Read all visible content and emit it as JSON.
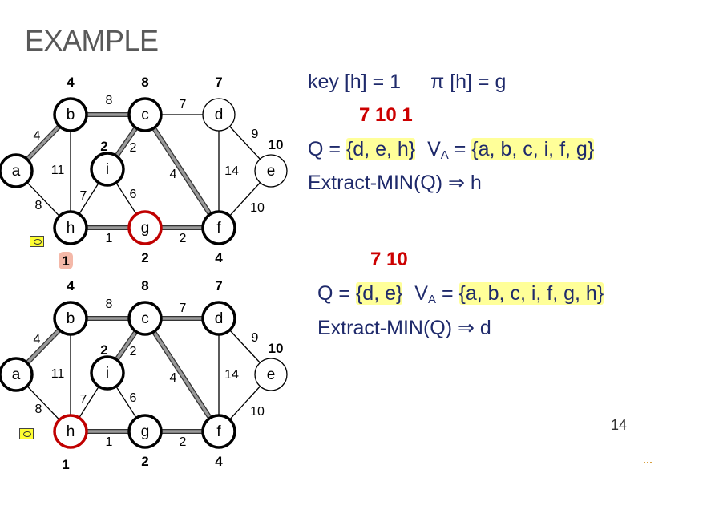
{
  "slide": {
    "title": "EXAMPLE",
    "page_number": "14"
  },
  "step1": {
    "key_line": "key [h] = 1",
    "pi_line": "π [h] = g",
    "queue_keys": "7 10 1",
    "q_label": "Q = ",
    "q_set": "{d, e, h}",
    "va_label": "V",
    "va_sub": "A",
    "va_eq": " = ",
    "va_set": "{a, b, c, i, f, g}",
    "extract": "Extract-MIN(Q) ⇒ h"
  },
  "step2": {
    "queue_keys": "7 10",
    "q_label": "Q = ",
    "q_set": "{d, e}",
    "va_label": "V",
    "va_sub": "A",
    "va_eq": " = ",
    "va_set": "{a, b, c, i, f, g, h}",
    "extract": "Extract-MIN(Q) ⇒ d"
  },
  "graphs": [
    {
      "nodes": [
        {
          "id": "a",
          "key": "",
          "bold": true,
          "red": false
        },
        {
          "id": "b",
          "key": "4",
          "bold": true,
          "red": false
        },
        {
          "id": "c",
          "key": "8",
          "bold": true,
          "red": false
        },
        {
          "id": "d",
          "key": "7",
          "bold": false,
          "red": false
        },
        {
          "id": "e",
          "key": "10",
          "bold": false,
          "red": false
        },
        {
          "id": "f",
          "key": "4",
          "bold": true,
          "red": false
        },
        {
          "id": "g",
          "key": "2",
          "bold": true,
          "red": true
        },
        {
          "id": "h",
          "key": "1",
          "bold": true,
          "red": false,
          "key_highlight": true
        },
        {
          "id": "i",
          "key": "2",
          "bold": true,
          "red": false
        }
      ],
      "edges": [
        {
          "u": "a",
          "v": "b",
          "w": "4",
          "tree": true
        },
        {
          "u": "a",
          "v": "h",
          "w": "8",
          "tree": false
        },
        {
          "u": "b",
          "v": "c",
          "w": "8",
          "tree": true
        },
        {
          "u": "b",
          "v": "h",
          "w": "11",
          "tree": false
        },
        {
          "u": "c",
          "v": "d",
          "w": "7",
          "tree": false
        },
        {
          "u": "c",
          "v": "i",
          "w": "2",
          "tree": true
        },
        {
          "u": "c",
          "v": "f",
          "w": "4",
          "tree": true
        },
        {
          "u": "d",
          "v": "e",
          "w": "9",
          "tree": false
        },
        {
          "u": "d",
          "v": "f",
          "w": "14",
          "tree": false
        },
        {
          "u": "e",
          "v": "f",
          "w": "10",
          "tree": false
        },
        {
          "u": "f",
          "v": "g",
          "w": "2",
          "tree": true
        },
        {
          "u": "g",
          "v": "h",
          "w": "1",
          "tree": true
        },
        {
          "u": "g",
          "v": "i",
          "w": "6",
          "tree": false
        },
        {
          "u": "h",
          "v": "i",
          "w": "7",
          "tree": false
        }
      ]
    },
    {
      "nodes": [
        {
          "id": "a",
          "key": "",
          "bold": true,
          "red": false
        },
        {
          "id": "b",
          "key": "4",
          "bold": true,
          "red": false
        },
        {
          "id": "c",
          "key": "8",
          "bold": true,
          "red": false
        },
        {
          "id": "d",
          "key": "7",
          "bold": true,
          "red": false
        },
        {
          "id": "e",
          "key": "10",
          "bold": false,
          "red": false
        },
        {
          "id": "f",
          "key": "4",
          "bold": true,
          "red": false
        },
        {
          "id": "g",
          "key": "2",
          "bold": true,
          "red": false
        },
        {
          "id": "h",
          "key": "1",
          "bold": true,
          "red": true,
          "key_highlight": false
        },
        {
          "id": "i",
          "key": "2",
          "bold": true,
          "red": false
        }
      ],
      "edges": [
        {
          "u": "a",
          "v": "b",
          "w": "4",
          "tree": true
        },
        {
          "u": "a",
          "v": "h",
          "w": "8",
          "tree": false
        },
        {
          "u": "b",
          "v": "c",
          "w": "8",
          "tree": true
        },
        {
          "u": "b",
          "v": "h",
          "w": "11",
          "tree": false
        },
        {
          "u": "c",
          "v": "d",
          "w": "7",
          "tree": true
        },
        {
          "u": "c",
          "v": "i",
          "w": "2",
          "tree": true
        },
        {
          "u": "c",
          "v": "f",
          "w": "4",
          "tree": true
        },
        {
          "u": "d",
          "v": "e",
          "w": "9",
          "tree": false
        },
        {
          "u": "d",
          "v": "f",
          "w": "14",
          "tree": false
        },
        {
          "u": "e",
          "v": "f",
          "w": "10",
          "tree": false
        },
        {
          "u": "f",
          "v": "g",
          "w": "2",
          "tree": true
        },
        {
          "u": "g",
          "v": "h",
          "w": "1",
          "tree": true
        },
        {
          "u": "g",
          "v": "i",
          "w": "6",
          "tree": false
        },
        {
          "u": "h",
          "v": "i",
          "w": "7",
          "tree": false
        }
      ]
    }
  ],
  "colors": {
    "text_blue": "#1f2a6b",
    "key_red": "#cc0000",
    "highlight_yellow": "#ffff99",
    "tree_edge_gray": "#999999",
    "node_red": "#c00000"
  }
}
